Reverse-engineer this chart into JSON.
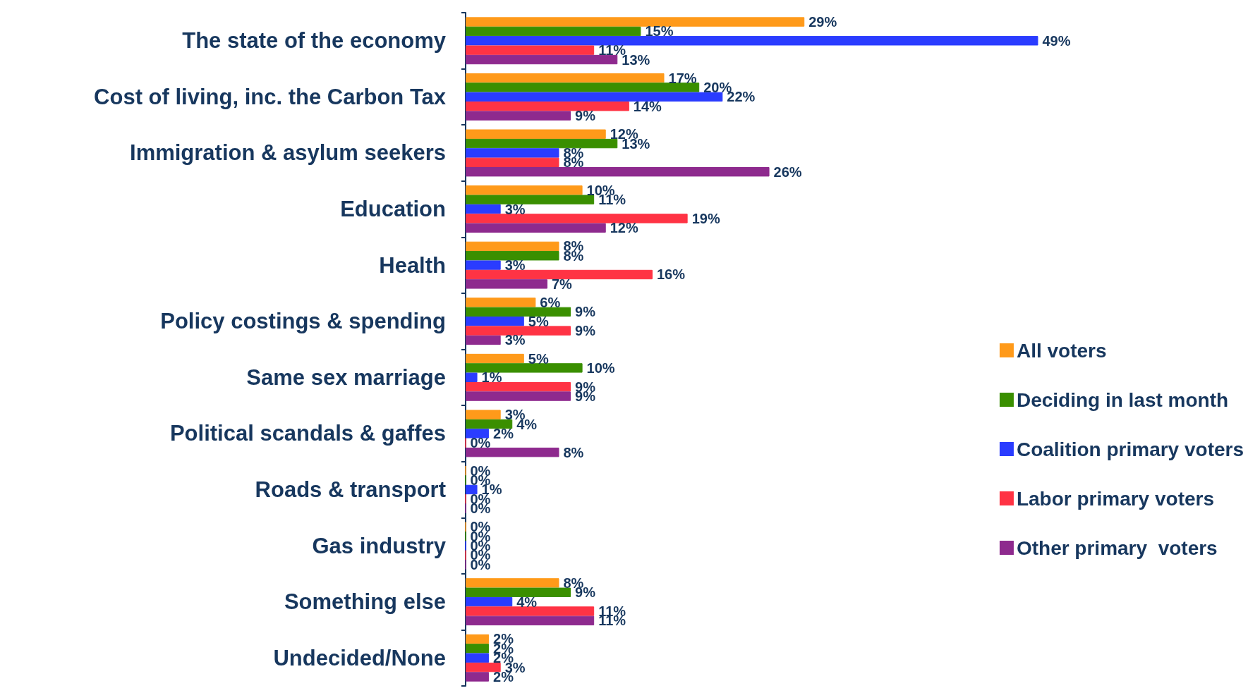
{
  "chart_data": {
    "type": "bar",
    "orientation": "horizontal",
    "categories": [
      "The state of the economy",
      "Cost of living, inc. the Carbon Tax",
      "Immigration & asylum seekers",
      "Education",
      "Health",
      "Policy costings & spending",
      "Same sex marriage",
      "Political scandals & gaffes",
      "Roads & transport",
      "Gas industry",
      "Something else",
      "Undecided/None"
    ],
    "series": [
      {
        "name": "All voters",
        "color": "#ff9a1a",
        "values": [
          29,
          17,
          12,
          10,
          8,
          6,
          5,
          3,
          0,
          0,
          8,
          2
        ],
        "value_labels": [
          "29%",
          "17%",
          "12%",
          "10%",
          "8%",
          "6%",
          "5%",
          "3%",
          "0%",
          "0%",
          "8%",
          "2%"
        ]
      },
      {
        "name": "Deciding in last month",
        "color": "#3a8f00",
        "values": [
          15,
          20,
          13,
          11,
          8,
          9,
          10,
          4,
          0,
          0,
          9,
          2
        ],
        "value_labels": [
          "15%",
          "20%",
          "13%",
          "11%",
          "8%",
          "9%",
          "10%",
          "4%",
          "0%",
          "0%",
          "9%",
          "2%"
        ]
      },
      {
        "name": "Coalition primary voters",
        "color": "#2a3cff",
        "values": [
          49,
          22,
          8,
          3,
          3,
          5,
          1,
          2,
          1,
          0,
          4,
          2
        ],
        "value_labels": [
          "49%",
          "22%",
          "8%",
          "3%",
          "3%",
          "5%",
          "1%",
          "2%",
          "1%",
          "0%",
          "4%",
          "2%"
        ]
      },
      {
        "name": "Labor primary voters",
        "color": "#ff3344",
        "values": [
          11,
          14,
          8,
          19,
          16,
          9,
          9,
          0,
          0,
          0,
          11,
          3
        ],
        "value_labels": [
          "11%",
          "14%",
          "8%",
          "19%",
          "16%",
          "9%",
          "9%",
          "0%",
          "0%",
          "0%",
          "11%",
          "3%"
        ]
      },
      {
        "name": "Other primary  voters",
        "color": "#8e2a8e",
        "values": [
          13,
          9,
          26,
          12,
          7,
          3,
          9,
          8,
          0,
          0,
          11,
          2
        ],
        "value_labels": [
          "13%",
          "9%",
          "26%",
          "12%",
          "7%",
          "3%",
          "9%",
          "8%",
          "0%",
          "0%",
          "11%",
          "2%"
        ]
      }
    ],
    "legend": "right",
    "grid": false
  }
}
